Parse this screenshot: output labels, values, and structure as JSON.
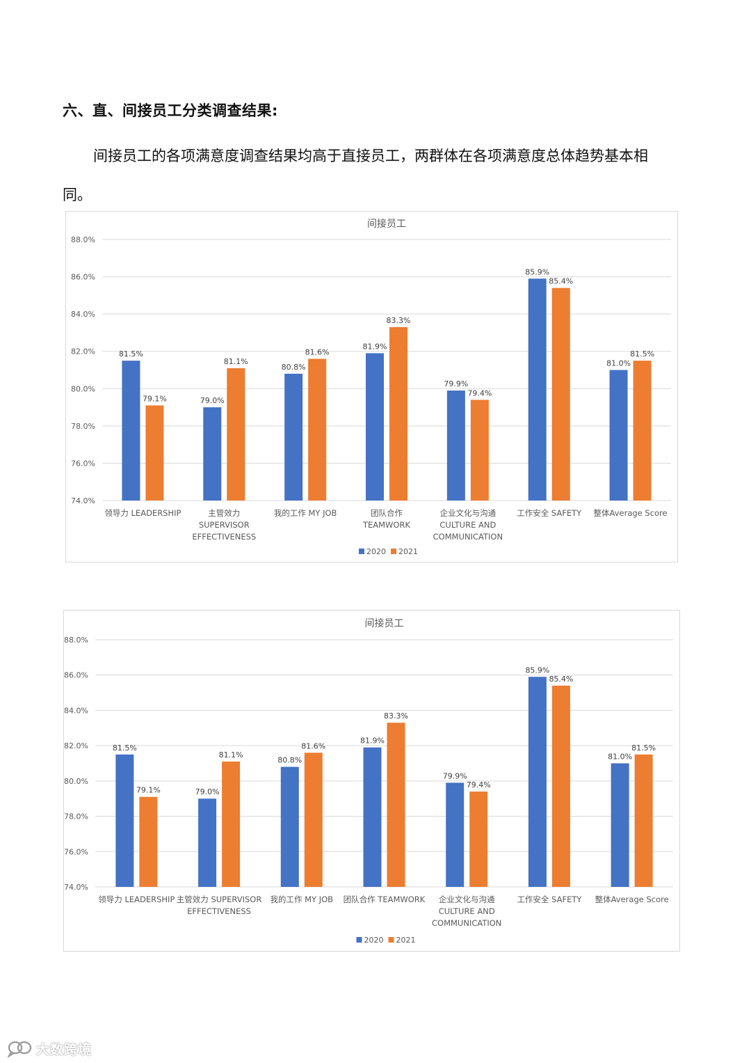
{
  "section": {
    "heading": "六、直、间接员工分类调查结果:",
    "paragraph": "间接员工的各项满意度调查结果均高于直接员工，两群体在各项满意度总体趋势基本相同。"
  },
  "colors": {
    "series_2020": "#4472C4",
    "series_2021": "#ED7D31",
    "grid": "#d9d9d9",
    "axis_text": "#595959"
  },
  "chart_data": [
    {
      "type": "bar",
      "title": "间接员工",
      "categories": [
        [
          "领导力 LEADERSHIP"
        ],
        [
          "主管效力",
          "SUPERVISOR",
          "EFFECTIVENESS"
        ],
        [
          "我的工作 MY JOB"
        ],
        [
          "团队合作",
          "TEAMWORK"
        ],
        [
          "企业文化与沟通",
          "CULTURE AND",
          "COMMUNICATION"
        ],
        [
          "工作安全 SAFETY"
        ],
        [
          "整体Average Score"
        ]
      ],
      "series": [
        {
          "name": "2020",
          "values": [
            81.5,
            79.0,
            80.8,
            81.9,
            79.9,
            85.9,
            81.0
          ]
        },
        {
          "name": "2021",
          "values": [
            79.1,
            81.1,
            81.6,
            83.3,
            79.4,
            85.4,
            81.5
          ]
        }
      ],
      "ylim": [
        74.0,
        88.0
      ],
      "yticks": [
        "74.0%",
        "76.0%",
        "78.0%",
        "80.0%",
        "82.0%",
        "84.0%",
        "86.0%",
        "88.0%"
      ],
      "grid": true,
      "legend": "bottom"
    },
    {
      "type": "bar",
      "title": "间接员工",
      "categories": [
        [
          "领导力 LEADERSHIP"
        ],
        [
          "主管效力 SUPERVISOR",
          "EFFECTIVENESS"
        ],
        [
          "我的工作 MY JOB"
        ],
        [
          "团队合作 TEAMWORK"
        ],
        [
          "企业文化与沟通",
          "CULTURE AND",
          "COMMUNICATION"
        ],
        [
          "工作安全 SAFETY"
        ],
        [
          "整体Average Score"
        ]
      ],
      "series": [
        {
          "name": "2020",
          "values": [
            81.5,
            79.0,
            80.8,
            81.9,
            79.9,
            85.9,
            81.0
          ]
        },
        {
          "name": "2021",
          "values": [
            79.1,
            81.1,
            81.6,
            83.3,
            79.4,
            85.4,
            81.5
          ]
        }
      ],
      "ylim": [
        74.0,
        88.0
      ],
      "yticks": [
        "74.0%",
        "76.0%",
        "78.0%",
        "80.0%",
        "82.0%",
        "84.0%",
        "86.0%",
        "88.0%"
      ],
      "grid": true,
      "legend": "bottom"
    }
  ],
  "watermark": {
    "text": "大数跨境",
    "logo_icon": "chat-bubble-logo-icon"
  }
}
